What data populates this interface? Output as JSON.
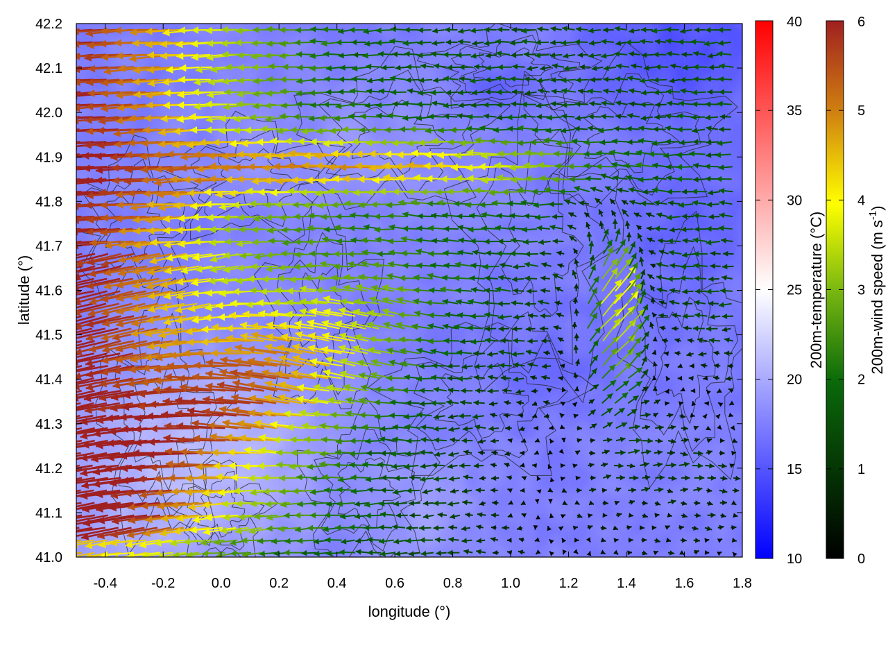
{
  "chart_data": {
    "type": "heatmap",
    "xlabel": "longitude (°)",
    "ylabel": "latitude (°)",
    "xlim": [
      -0.5,
      1.8
    ],
    "ylim": [
      41.0,
      42.2
    ],
    "xticks": [
      "-0.4",
      "-0.2",
      "0.0",
      "0.2",
      "0.4",
      "0.6",
      "0.8",
      "1.0",
      "1.2",
      "1.4",
      "1.6",
      "1.8"
    ],
    "yticks": [
      "41.0",
      "41.1",
      "41.2",
      "41.3",
      "41.4",
      "41.5",
      "41.6",
      "41.7",
      "41.8",
      "41.9",
      "42.0",
      "42.1",
      "42.2"
    ],
    "grid": true,
    "colorbars": [
      {
        "label": "200m-temperature (°C)",
        "range": [
          10,
          40
        ],
        "ticks": [
          "10",
          "15",
          "20",
          "25",
          "30",
          "35",
          "40"
        ],
        "colors": [
          "#0000ff",
          "#ffffff",
          "#ff0000"
        ]
      },
      {
        "label_main": "200m-wind speed (m s",
        "label_sup": "-1",
        "label_close": ")",
        "range": [
          0,
          6
        ],
        "ticks": [
          "0",
          "1",
          "2",
          "3",
          "4",
          "5",
          "6"
        ],
        "colors": [
          "#000000",
          "#0a6a0a",
          "#8aba10",
          "#ffff00",
          "#d08010",
          "#a02020"
        ]
      }
    ],
    "temperature_field_note": "values mostly between 14 and 22 °C, warmer (up to ~24) over the southwest lowlands",
    "wind_regimes": [
      {
        "region": "west / north-west",
        "direction": "westward, slightly descending to the west",
        "speed": 6
      },
      {
        "region": "north band near 41.9",
        "direction": "westward",
        "speed": 4
      },
      {
        "region": "center",
        "direction": "westward",
        "speed": 2
      },
      {
        "region": "south-east lowlands",
        "direction": "eastward",
        "speed": 1.5
      },
      {
        "region": "east near 1.3-1.5",
        "direction": "north-eastward",
        "speed": 4.5
      }
    ]
  }
}
